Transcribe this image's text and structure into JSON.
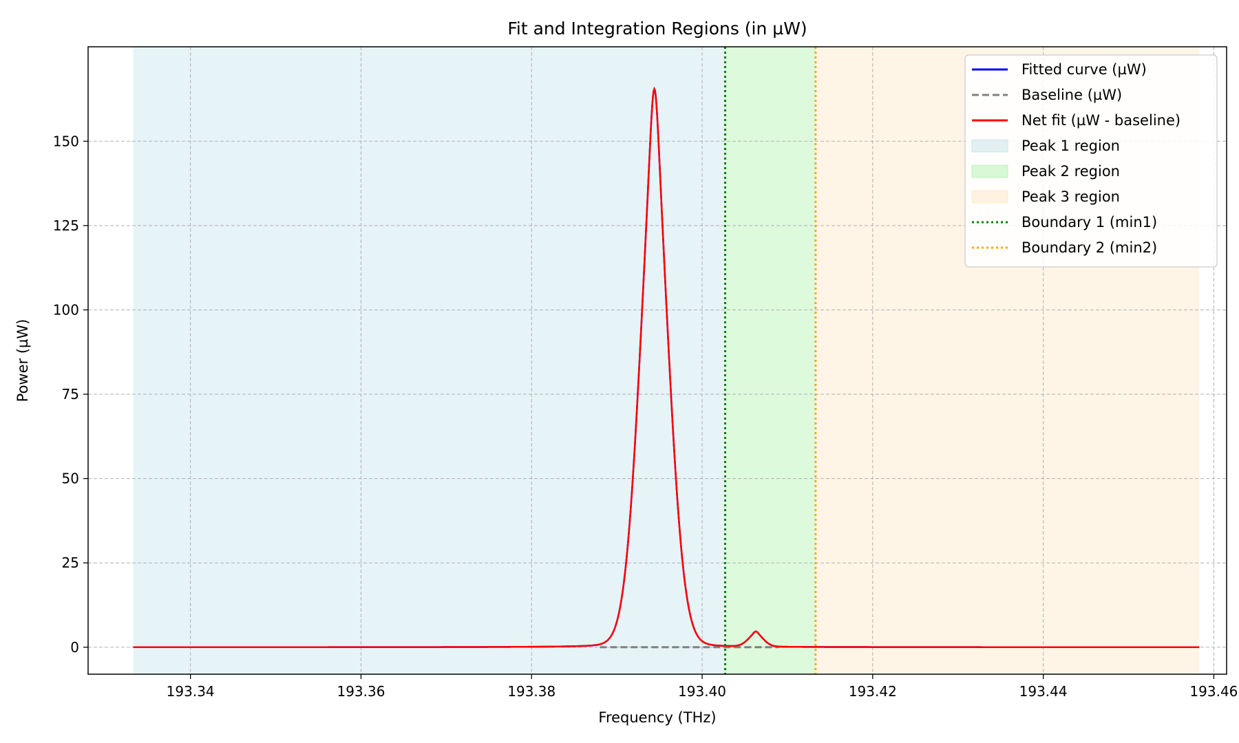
{
  "chart_data": {
    "type": "line",
    "title": "Fit and Integration Regions (in µW)",
    "xlabel": "Frequency (THz)",
    "ylabel": "Power (µW)",
    "xlim": [
      193.328,
      193.4615
    ],
    "ylim": [
      -8,
      178
    ],
    "xticks": [
      193.34,
      193.36,
      193.38,
      193.4,
      193.42,
      193.44,
      193.46
    ],
    "xtick_labels": [
      "193.34",
      "193.36",
      "193.38",
      "193.40",
      "193.42",
      "193.44",
      "193.46"
    ],
    "yticks": [
      0,
      25,
      50,
      75,
      100,
      125,
      150
    ],
    "ytick_labels": [
      "0",
      "25",
      "50",
      "75",
      "100",
      "125",
      "150"
    ],
    "grid": true,
    "legend_position": "top-right",
    "x_range": [
      193.3333,
      193.4583
    ],
    "peaks": [
      {
        "center": 193.3944,
        "amplitude": 165.5,
        "sigma": 0.0018,
        "gamma": 0.0008
      },
      {
        "center": 193.4063,
        "amplitude": 4.5,
        "sigma": 0.0009,
        "gamma": 0.0004
      }
    ],
    "baseline": {
      "x": [
        193.388,
        193.409
      ],
      "y": [
        0,
        0
      ]
    },
    "regions": [
      {
        "name": "Peak 1 region",
        "x": [
          193.3333,
          193.4027
        ],
        "color": "#add8e6",
        "opacity": 0.3
      },
      {
        "name": "Peak 2 region",
        "x": [
          193.4027,
          193.4133
        ],
        "color": "#90ee90",
        "opacity": 0.3
      },
      {
        "name": "Peak 3 region",
        "x": [
          193.4133,
          193.4583
        ],
        "color": "#ffdead",
        "opacity": 0.3
      }
    ],
    "boundaries": [
      {
        "name": "Boundary 1 (min1)",
        "x": 193.4027,
        "color": "#008000"
      },
      {
        "name": "Boundary 2 (min2)",
        "x": 193.4133,
        "color": "#ffa500"
      }
    ],
    "series": [
      {
        "name": "Fitted curve (µW)",
        "color": "#0000ff",
        "style": "solid"
      },
      {
        "name": "Baseline (µW)",
        "color": "#808080",
        "style": "dashed"
      },
      {
        "name": "Net fit (µW - baseline)",
        "color": "#ff0000",
        "style": "solid"
      }
    ]
  },
  "legend": {
    "items": [
      {
        "label": "Fitted curve (µW)",
        "kind": "line",
        "color": "#0000ff",
        "style": "solid"
      },
      {
        "label": "Baseline (µW)",
        "kind": "line",
        "color": "#808080",
        "style": "dashed"
      },
      {
        "label": "Net fit (µW - baseline)",
        "kind": "line",
        "color": "#ff0000",
        "style": "solid"
      },
      {
        "label": "Peak 1 region",
        "kind": "patch",
        "color": "#add8e6"
      },
      {
        "label": "Peak 2 region",
        "kind": "patch",
        "color": "#90ee90"
      },
      {
        "label": "Peak 3 region",
        "kind": "patch",
        "color": "#ffdead"
      },
      {
        "label": "Boundary 1 (min1)",
        "kind": "line",
        "color": "#008000",
        "style": "dotted"
      },
      {
        "label": "Boundary 2 (min2)",
        "kind": "line",
        "color": "#ffa500",
        "style": "dotted"
      }
    ]
  }
}
